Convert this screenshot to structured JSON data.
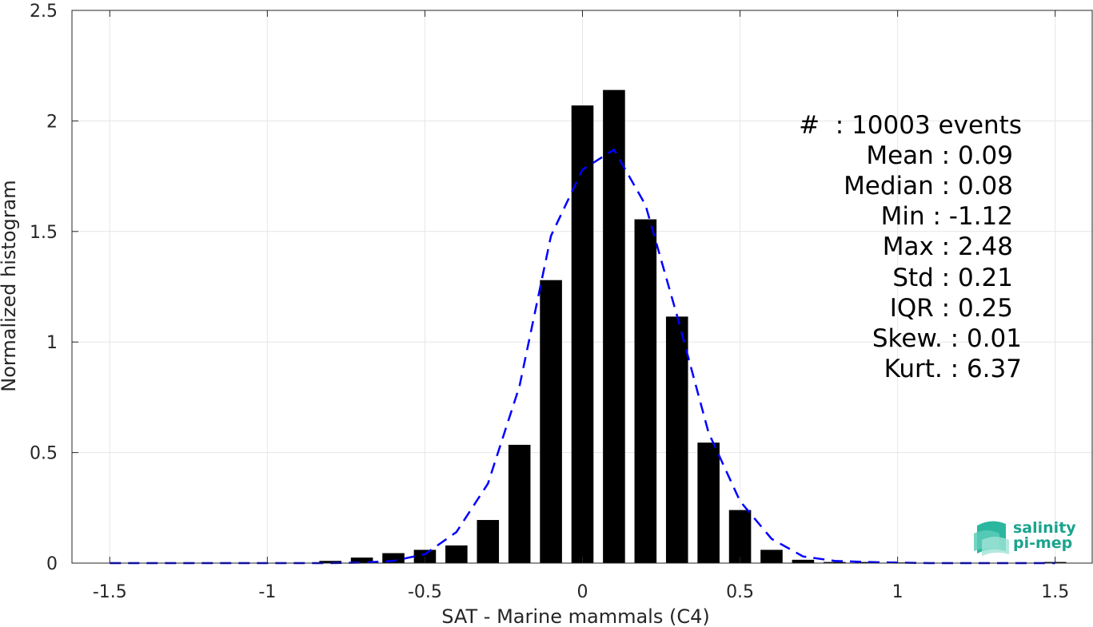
{
  "chart_data": {
    "type": "bar",
    "xlabel": "SAT - Marine mammals (C4)",
    "ylabel": "Normalized histogram",
    "xlim": [
      -1.62,
      1.62
    ],
    "ylim": [
      0,
      2.5
    ],
    "x_ticks": [
      -1.5,
      -1,
      -0.5,
      0,
      0.5,
      1,
      1.5
    ],
    "x_tick_labels": [
      "-1.5",
      "-1",
      "-0.5",
      "0",
      "0.5",
      "1",
      "1.5"
    ],
    "y_ticks": [
      0,
      0.5,
      1,
      1.5,
      2,
      2.5
    ],
    "y_tick_labels": [
      "0",
      "0.5",
      "1",
      "1.5",
      "2",
      "2.5"
    ],
    "grid": true,
    "bar_width": 0.07,
    "bars": {
      "x": [
        -1.5,
        -1.4,
        -1.3,
        -1.2,
        -1.1,
        -1.0,
        -0.9,
        -0.8,
        -0.7,
        -0.6,
        -0.5,
        -0.4,
        -0.3,
        -0.2,
        -0.1,
        0.0,
        0.1,
        0.2,
        0.3,
        0.4,
        0.5,
        0.6,
        0.7,
        0.8,
        0.9,
        1.0,
        1.1,
        1.2,
        1.3,
        1.4,
        1.5
      ],
      "values": [
        0,
        0,
        0,
        0,
        0,
        0,
        0,
        0.01,
        0.025,
        0.045,
        0.06,
        0.08,
        0.195,
        0.535,
        1.28,
        2.07,
        2.14,
        1.555,
        1.115,
        0.545,
        0.24,
        0.06,
        0.015,
        0.005,
        0.005,
        0.003,
        0,
        0,
        0,
        0,
        0.005
      ],
      "color": "#000000"
    },
    "fit_curve": {
      "style": "dashed",
      "color": "#0000ff",
      "x": [
        -1.5,
        -1.4,
        -1.3,
        -1.2,
        -1.1,
        -1.0,
        -0.9,
        -0.8,
        -0.7,
        -0.6,
        -0.5,
        -0.4,
        -0.3,
        -0.2,
        -0.1,
        0.0,
        0.1,
        0.2,
        0.3,
        0.4,
        0.5,
        0.6,
        0.7,
        0.8,
        0.9,
        1.0,
        1.1,
        1.2,
        1.3,
        1.4,
        1.5
      ],
      "y": [
        0,
        0,
        0,
        0,
        0,
        0,
        0,
        0,
        0.002,
        0.01,
        0.04,
        0.14,
        0.36,
        0.8,
        1.48,
        1.78,
        1.87,
        1.62,
        1.12,
        0.59,
        0.28,
        0.11,
        0.03,
        0.01,
        0.005,
        0.002,
        0,
        0,
        0,
        0,
        0
      ]
    },
    "annotations": [
      "#  : 10003 events",
      "Mean : 0.09",
      "Median : 0.08",
      "Min : -1.12",
      "Max : 2.48",
      "Std : 0.21",
      "IQR : 0.25",
      "Skew. : 0.01",
      "Kurt. : 6.37"
    ]
  },
  "logo": {
    "line1": "salinity",
    "line2": "pi-mep",
    "color": "#1aa38e"
  }
}
